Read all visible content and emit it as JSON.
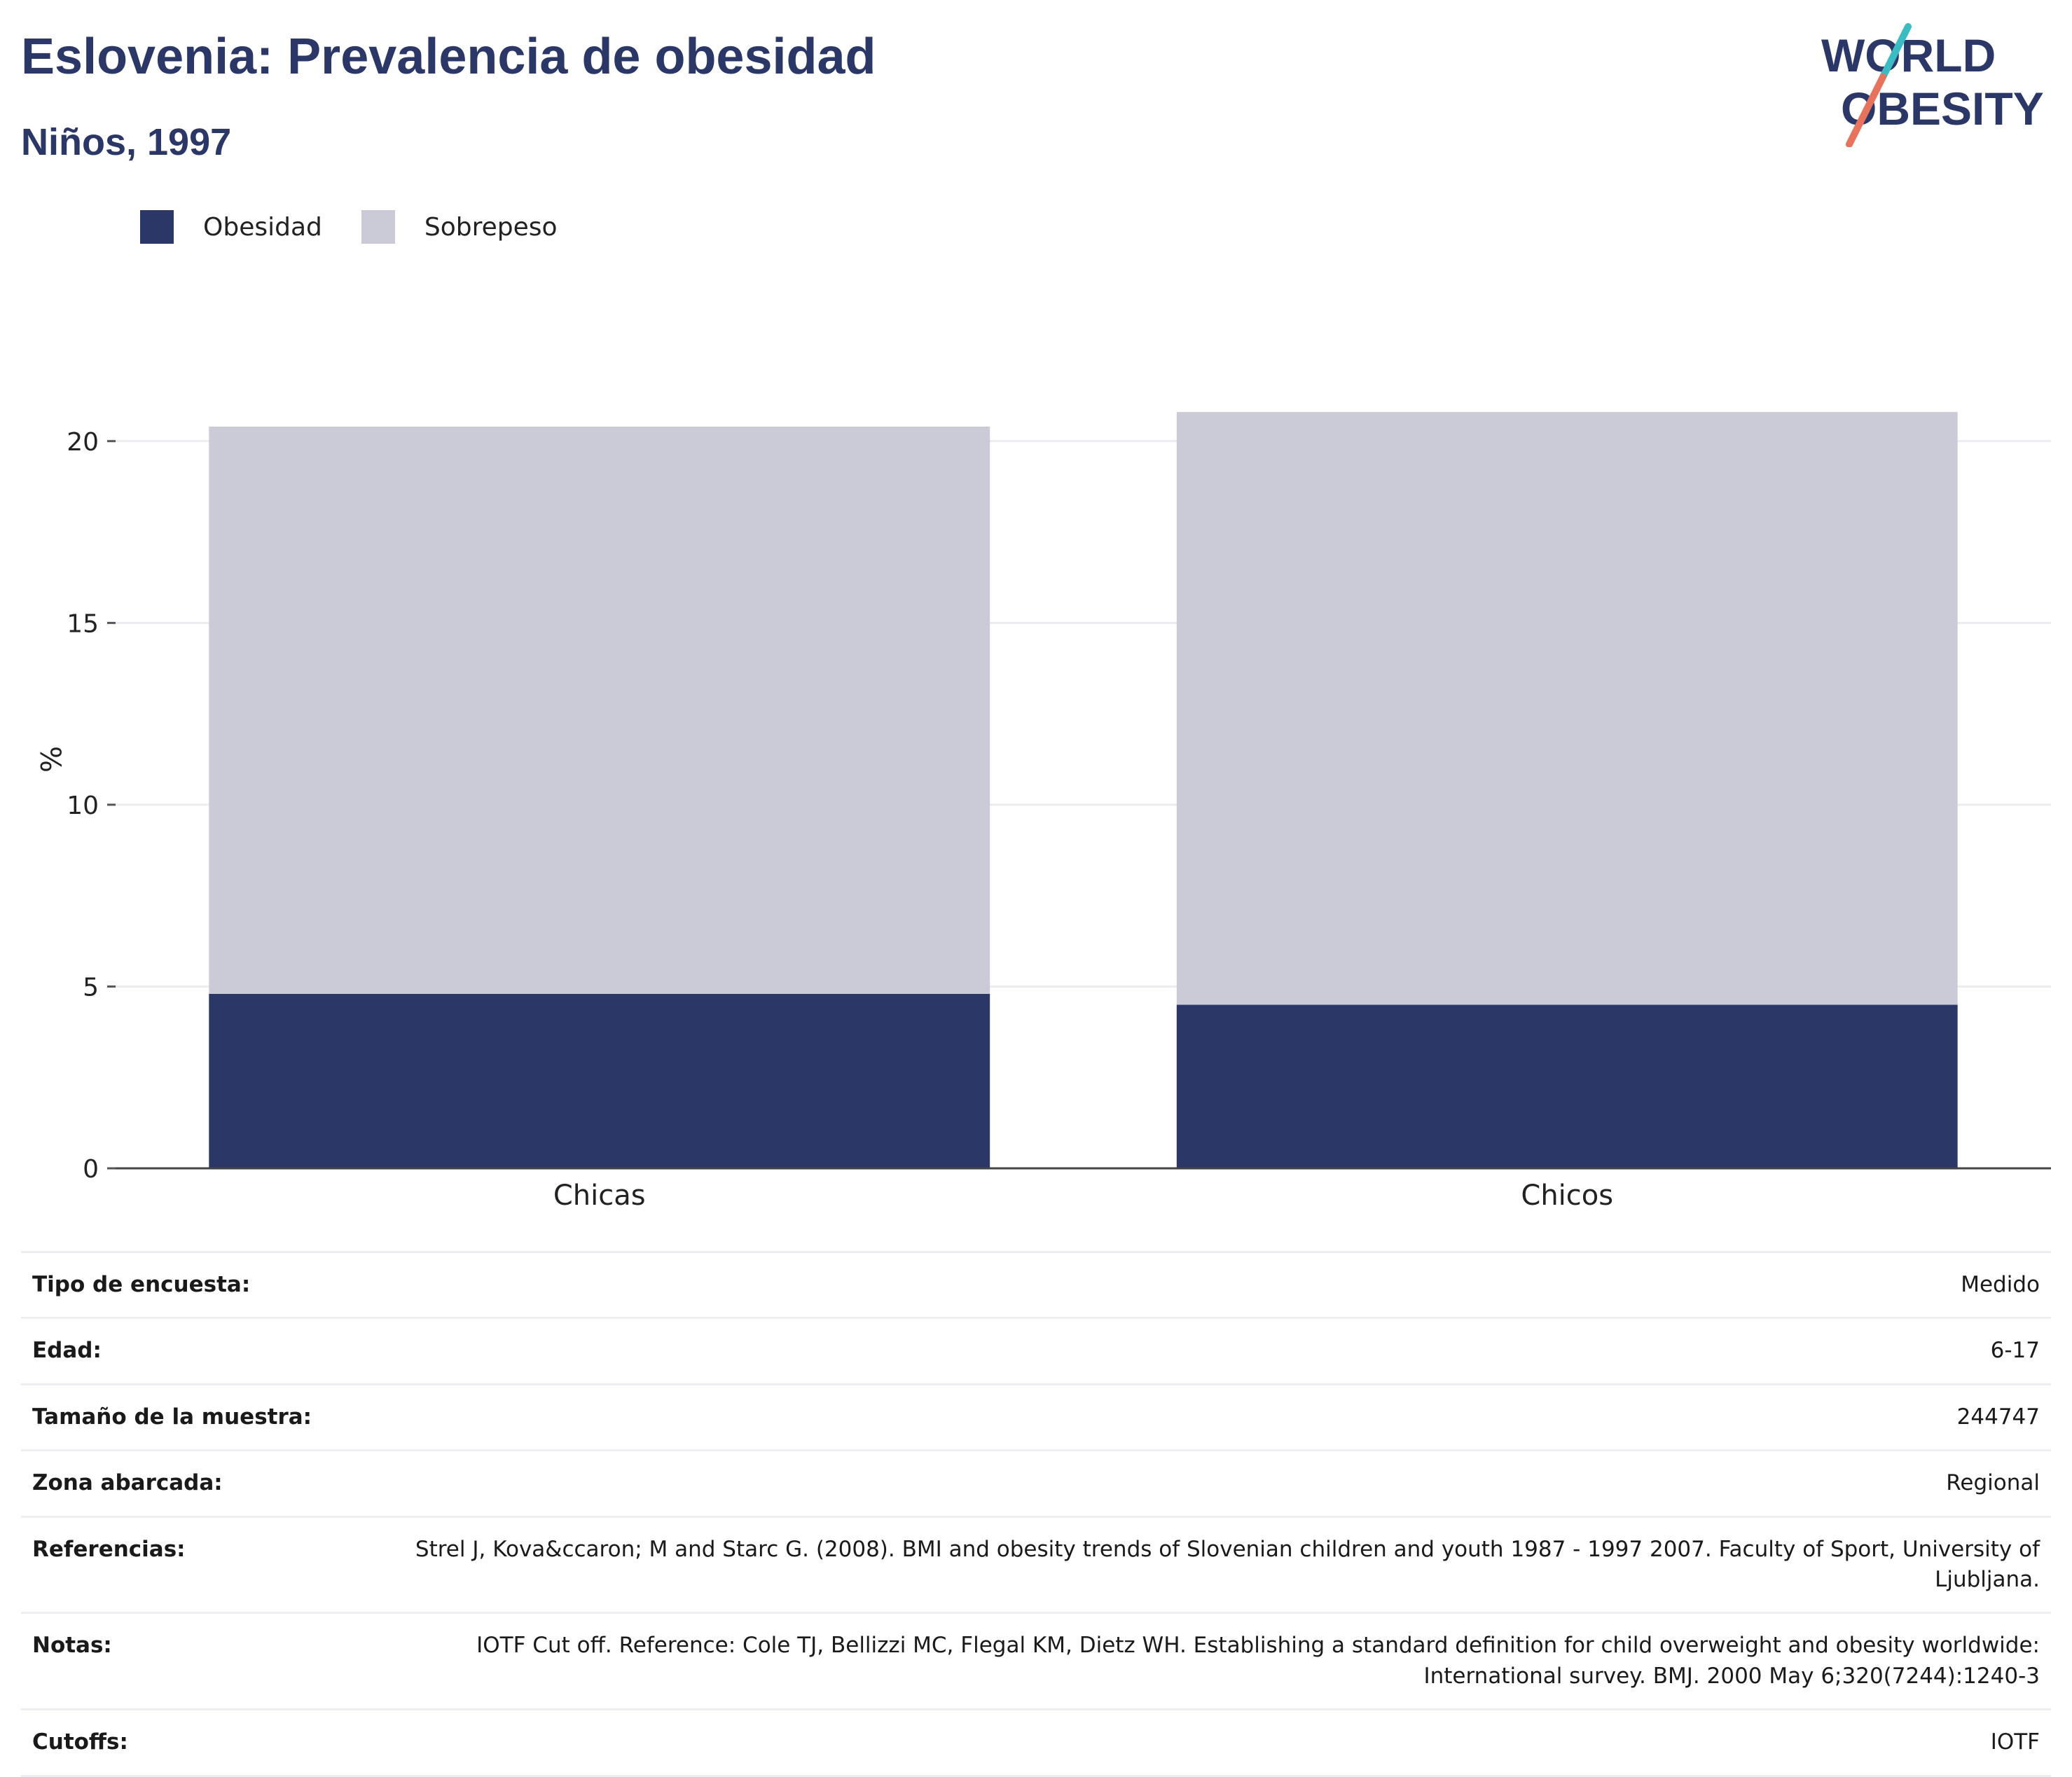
{
  "header": {
    "title": "Eslovenia: Prevalencia de obesidad",
    "subtitle": "Niños, 1997"
  },
  "logo": {
    "line1": "WORLD",
    "line2": "OBESITY",
    "accent_teal": "#3bbcc2",
    "accent_coral": "#e8735d"
  },
  "colors": {
    "obesity": "#2b3766",
    "overweight": "#cacbd7",
    "title": "#2b3766",
    "grid": "#ebecf0"
  },
  "legend": [
    {
      "label": "Obesidad",
      "color": "#2b3766"
    },
    {
      "label": "Sobrepeso",
      "color": "#cacbd7"
    }
  ],
  "chart_data": {
    "type": "bar",
    "stacked": true,
    "categories": [
      "Chicas",
      "Chicos"
    ],
    "series": [
      {
        "name": "Obesidad",
        "values": [
          4.8,
          4.5
        ]
      },
      {
        "name": "Sobrepeso",
        "values": [
          15.6,
          16.3
        ]
      }
    ],
    "totals": [
      20.4,
      20.8
    ],
    "ylabel": "%",
    "ylim": [
      0,
      22.5
    ],
    "yticks": [
      0,
      5,
      10,
      15,
      20
    ],
    "grid": true,
    "legend_position": "top-left"
  },
  "info": [
    {
      "label": "Tipo de encuesta:",
      "value": "Medido"
    },
    {
      "label": "Edad:",
      "value": "6-17"
    },
    {
      "label": "Tamaño de la muestra:",
      "value": "244747"
    },
    {
      "label": "Zona abarcada:",
      "value": "Regional"
    },
    {
      "label": "Referencias:",
      "value": "Strel J, Kova&ccaron; M and Starc G. (2008). BMI and obesity trends of Slovenian children and youth 1987 - 1997 2007. Faculty of Sport, University of Ljubljana."
    },
    {
      "label": "Notas:",
      "value": "IOTF Cut off. Reference: Cole TJ, Bellizzi MC, Flegal KM, Dietz WH. Establishing a standard definition for child overweight and obesity worldwide: International survey. BMJ. 2000 May 6;320(7244):1240-3"
    },
    {
      "label": "Cutoffs:",
      "value": "IOTF"
    }
  ]
}
